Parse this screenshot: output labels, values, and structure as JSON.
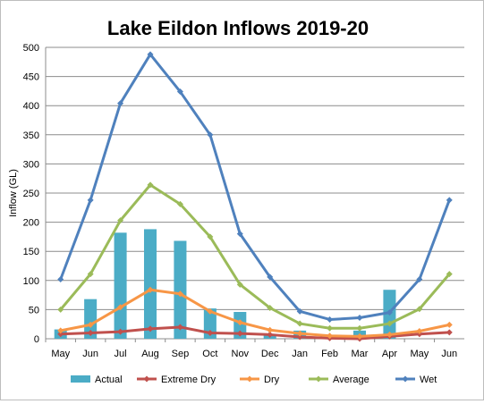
{
  "chart_data": {
    "type": "bar",
    "title": "Lake Eildon Inflows 2019-20",
    "xlabel": "",
    "ylabel": "Inflow (GL)",
    "categories": [
      "May",
      "Jun",
      "Jul",
      "Aug",
      "Sep",
      "Oct",
      "Nov",
      "Dec",
      "Jan",
      "Feb",
      "Mar",
      "Apr",
      "May",
      "Jun"
    ],
    "ylim": [
      0,
      500
    ],
    "yticks": [
      0,
      50,
      100,
      150,
      200,
      250,
      300,
      350,
      400,
      450,
      500
    ],
    "grid": true,
    "legend_position": "bottom",
    "bars": {
      "name": "Actual",
      "color": "#4bacc6",
      "values": [
        16,
        68,
        182,
        188,
        168,
        52,
        46,
        8,
        14,
        4,
        14,
        84,
        null,
        null
      ]
    },
    "series": [
      {
        "name": "Extreme Dry",
        "type": "line",
        "color": "#c0504d",
        "values": [
          8,
          10,
          12,
          17,
          20,
          10,
          9,
          7,
          3,
          1,
          0,
          4,
          8,
          11
        ]
      },
      {
        "name": "Dry",
        "type": "line",
        "color": "#f79646",
        "values": [
          14,
          24,
          54,
          84,
          77,
          47,
          28,
          15,
          9,
          5,
          4,
          7,
          13,
          24
        ]
      },
      {
        "name": "Average",
        "type": "line",
        "color": "#9bbb59",
        "values": [
          50,
          111,
          203,
          264,
          231,
          175,
          93,
          53,
          26,
          18,
          18,
          26,
          51,
          111
        ]
      },
      {
        "name": "Wet",
        "type": "line",
        "color": "#4f81bd",
        "values": [
          102,
          238,
          404,
          488,
          424,
          350,
          180,
          106,
          47,
          33,
          36,
          45,
          102,
          238
        ]
      }
    ]
  }
}
